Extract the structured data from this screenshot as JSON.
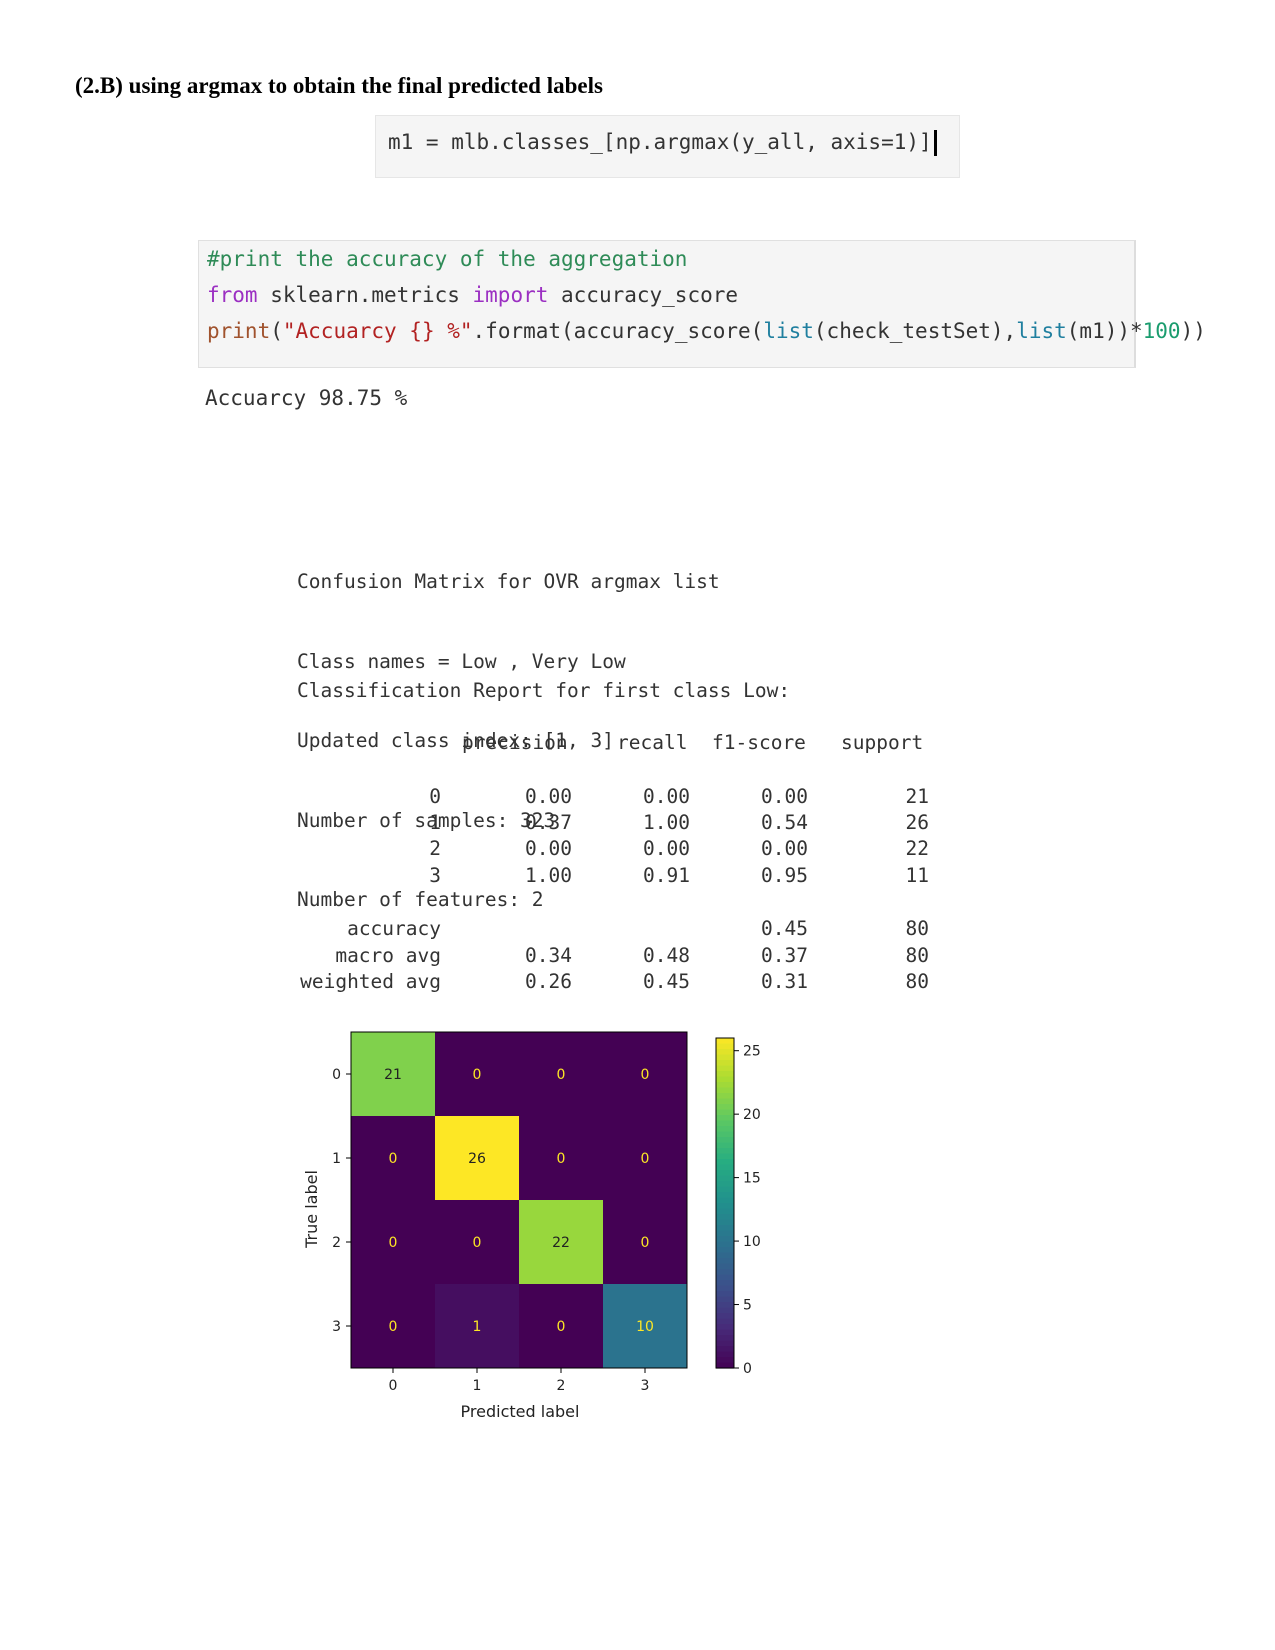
{
  "heading": "(2.B) using argmax to obtain the final predicted labels",
  "cell1": {
    "code": [
      "m1 = mlb.classes_[np.argmax(y_all, axis=1)]"
    ]
  },
  "cell2": {
    "line1": "#print the accuracy of the aggregation",
    "line2_kw1": "from",
    "line2_mid": " sklearn.metrics ",
    "line2_kw2": "import",
    "line2_end": " accuracy_score",
    "line3_fn": "print",
    "line3_a": "(",
    "line3_str": "\"Accuarcy {} %\"",
    "line3_b": ".format(accuracy_score(",
    "line3_bi1": "list",
    "line3_c": "(check_testSet),",
    "line3_bi2": "list",
    "line3_d": "(m1))*",
    "line3_num": "100",
    "line3_e": "))"
  },
  "output1": "Accuarcy 98.75 %",
  "info_lines": [
    "Confusion Matrix for OVR argmax list",
    "Class names = Low , Very Low",
    "Updated class index: [1, 3]",
    "Number of samples: 323",
    "Number of features: 2"
  ],
  "report_title": "Classification Report for first class Low:",
  "report": {
    "headers": [
      "precision",
      "recall",
      "f1-score",
      "support"
    ],
    "rows": [
      {
        "label": "0",
        "precision": "0.00",
        "recall": "0.00",
        "f1": "0.00",
        "support": "21"
      },
      {
        "label": "1",
        "precision": "0.37",
        "recall": "1.00",
        "f1": "0.54",
        "support": "26"
      },
      {
        "label": "2",
        "precision": "0.00",
        "recall": "0.00",
        "f1": "0.00",
        "support": "22"
      },
      {
        "label": "3",
        "precision": "1.00",
        "recall": "0.91",
        "f1": "0.95",
        "support": "11"
      }
    ],
    "summary": [
      {
        "label": "accuracy",
        "precision": "",
        "recall": "",
        "f1": "0.45",
        "support": "80"
      },
      {
        "label": "macro avg",
        "precision": "0.34",
        "recall": "0.48",
        "f1": "0.37",
        "support": "80"
      },
      {
        "label": "weighted avg",
        "precision": "0.26",
        "recall": "0.45",
        "f1": "0.31",
        "support": "80"
      }
    ]
  },
  "chart_data": {
    "type": "heatmap",
    "xlabel": "Predicted label",
    "ylabel": "True label",
    "x_ticks": [
      "0",
      "1",
      "2",
      "3"
    ],
    "y_ticks": [
      "0",
      "1",
      "2",
      "3"
    ],
    "matrix": [
      [
        21,
        0,
        0,
        0
      ],
      [
        0,
        26,
        0,
        0
      ],
      [
        0,
        0,
        22,
        0
      ],
      [
        0,
        1,
        0,
        10
      ]
    ],
    "colormap": "viridis",
    "colorbar_ticks": [
      0,
      5,
      10,
      15,
      20,
      25
    ],
    "colorbar_range": [
      0,
      26
    ]
  }
}
